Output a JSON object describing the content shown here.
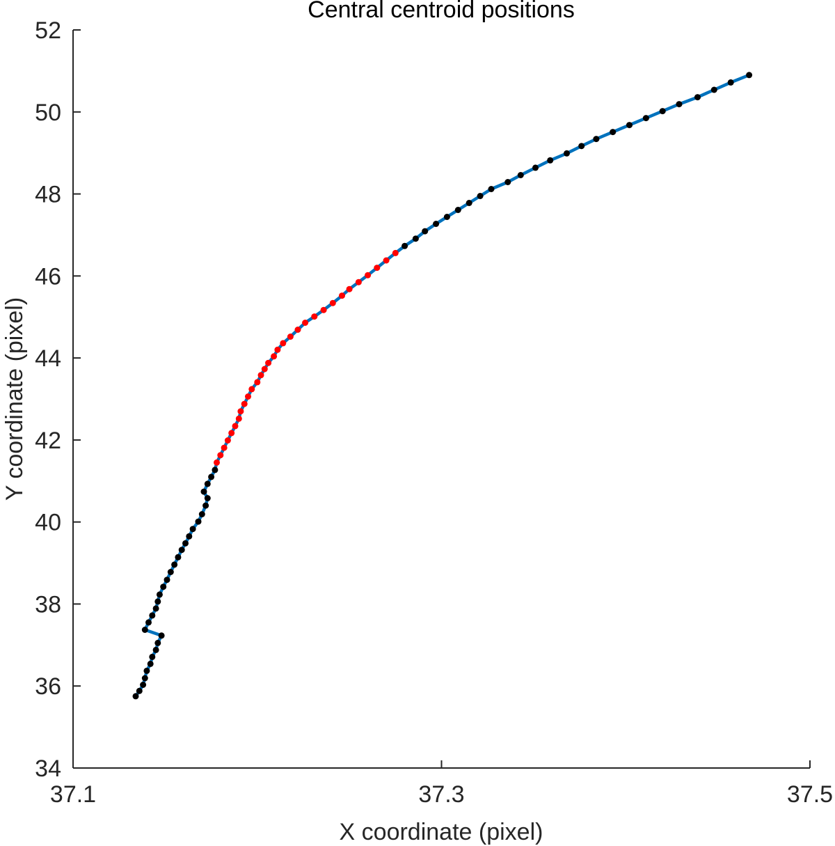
{
  "chart_data": {
    "type": "line",
    "title": "Central centroid positions",
    "xlabel": "X coordinate (pixel)",
    "ylabel": "Y coordinate (pixel)",
    "xlim": [
      37.1,
      37.5
    ],
    "ylim": [
      34,
      52
    ],
    "x_ticks": [
      37.1,
      37.3,
      37.5
    ],
    "x_tick_labels": [
      "37.1",
      "37.3",
      "37.5"
    ],
    "y_ticks": [
      34,
      36,
      38,
      40,
      42,
      44,
      46,
      48,
      50,
      52
    ],
    "y_tick_labels": [
      "34",
      "36",
      "38",
      "40",
      "42",
      "44",
      "46",
      "48",
      "50",
      "52"
    ],
    "grid": false,
    "legend": "none",
    "line_color": "#0072BD",
    "marker_colors": {
      "default": "#000000",
      "highlight": "#FF0000"
    },
    "series": [
      {
        "points": [
          {
            "x": 37.134,
            "y": 35.75,
            "highlight": false
          },
          {
            "x": 37.136,
            "y": 35.88,
            "highlight": false
          },
          {
            "x": 37.138,
            "y": 36.03,
            "highlight": false
          },
          {
            "x": 37.139,
            "y": 36.19,
            "highlight": false
          },
          {
            "x": 37.14,
            "y": 36.37,
            "highlight": false
          },
          {
            "x": 37.142,
            "y": 36.54,
            "highlight": false
          },
          {
            "x": 37.143,
            "y": 36.71,
            "highlight": false
          },
          {
            "x": 37.145,
            "y": 36.88,
            "highlight": false
          },
          {
            "x": 37.146,
            "y": 37.05,
            "highlight": false
          },
          {
            "x": 37.148,
            "y": 37.23,
            "highlight": false
          },
          {
            "x": 37.139,
            "y": 37.37,
            "highlight": false
          },
          {
            "x": 37.141,
            "y": 37.55,
            "highlight": false
          },
          {
            "x": 37.143,
            "y": 37.72,
            "highlight": false
          },
          {
            "x": 37.145,
            "y": 37.89,
            "highlight": false
          },
          {
            "x": 37.146,
            "y": 38.06,
            "highlight": false
          },
          {
            "x": 37.147,
            "y": 38.23,
            "highlight": false
          },
          {
            "x": 37.149,
            "y": 38.42,
            "highlight": false
          },
          {
            "x": 37.151,
            "y": 38.59,
            "highlight": false
          },
          {
            "x": 37.153,
            "y": 38.78,
            "highlight": false
          },
          {
            "x": 37.155,
            "y": 38.96,
            "highlight": false
          },
          {
            "x": 37.157,
            "y": 39.14,
            "highlight": false
          },
          {
            "x": 37.159,
            "y": 39.32,
            "highlight": false
          },
          {
            "x": 37.161,
            "y": 39.48,
            "highlight": false
          },
          {
            "x": 37.163,
            "y": 39.65,
            "highlight": false
          },
          {
            "x": 37.165,
            "y": 39.83,
            "highlight": false
          },
          {
            "x": 37.168,
            "y": 40.01,
            "highlight": false
          },
          {
            "x": 37.17,
            "y": 40.19,
            "highlight": false
          },
          {
            "x": 37.172,
            "y": 40.4,
            "highlight": false
          },
          {
            "x": 37.173,
            "y": 40.58,
            "highlight": false
          },
          {
            "x": 37.171,
            "y": 40.74,
            "highlight": false
          },
          {
            "x": 37.173,
            "y": 40.93,
            "highlight": false
          },
          {
            "x": 37.175,
            "y": 41.1,
            "highlight": false
          },
          {
            "x": 37.177,
            "y": 41.27,
            "highlight": false
          },
          {
            "x": 37.178,
            "y": 41.45,
            "highlight": true
          },
          {
            "x": 37.18,
            "y": 41.63,
            "highlight": true
          },
          {
            "x": 37.182,
            "y": 41.81,
            "highlight": true
          },
          {
            "x": 37.184,
            "y": 41.99,
            "highlight": true
          },
          {
            "x": 37.186,
            "y": 42.17,
            "highlight": true
          },
          {
            "x": 37.188,
            "y": 42.34,
            "highlight": true
          },
          {
            "x": 37.19,
            "y": 42.52,
            "highlight": true
          },
          {
            "x": 37.191,
            "y": 42.7,
            "highlight": true
          },
          {
            "x": 37.193,
            "y": 42.88,
            "highlight": true
          },
          {
            "x": 37.195,
            "y": 43.06,
            "highlight": true
          },
          {
            "x": 37.197,
            "y": 43.24,
            "highlight": true
          },
          {
            "x": 37.2,
            "y": 43.41,
            "highlight": true
          },
          {
            "x": 37.202,
            "y": 43.58,
            "highlight": true
          },
          {
            "x": 37.204,
            "y": 43.73,
            "highlight": true
          },
          {
            "x": 37.206,
            "y": 43.88,
            "highlight": true
          },
          {
            "x": 37.209,
            "y": 44.04,
            "highlight": true
          },
          {
            "x": 37.211,
            "y": 44.2,
            "highlight": true
          },
          {
            "x": 37.214,
            "y": 44.36,
            "highlight": true
          },
          {
            "x": 37.218,
            "y": 44.52,
            "highlight": true
          },
          {
            "x": 37.222,
            "y": 44.69,
            "highlight": true
          },
          {
            "x": 37.226,
            "y": 44.86,
            "highlight": true
          },
          {
            "x": 37.231,
            "y": 45.01,
            "highlight": true
          },
          {
            "x": 37.236,
            "y": 45.17,
            "highlight": true
          },
          {
            "x": 37.241,
            "y": 45.34,
            "highlight": true
          },
          {
            "x": 37.246,
            "y": 45.52,
            "highlight": true
          },
          {
            "x": 37.25,
            "y": 45.68,
            "highlight": true
          },
          {
            "x": 37.255,
            "y": 45.85,
            "highlight": true
          },
          {
            "x": 37.26,
            "y": 46.02,
            "highlight": true
          },
          {
            "x": 37.265,
            "y": 46.2,
            "highlight": true
          },
          {
            "x": 37.27,
            "y": 46.38,
            "highlight": true
          },
          {
            "x": 37.275,
            "y": 46.56,
            "highlight": true
          },
          {
            "x": 37.28,
            "y": 46.73,
            "highlight": false
          },
          {
            "x": 37.286,
            "y": 46.91,
            "highlight": false
          },
          {
            "x": 37.291,
            "y": 47.09,
            "highlight": false
          },
          {
            "x": 37.297,
            "y": 47.27,
            "highlight": false
          },
          {
            "x": 37.303,
            "y": 47.44,
            "highlight": false
          },
          {
            "x": 37.309,
            "y": 47.61,
            "highlight": false
          },
          {
            "x": 37.315,
            "y": 47.78,
            "highlight": false
          },
          {
            "x": 37.321,
            "y": 47.95,
            "highlight": false
          },
          {
            "x": 37.327,
            "y": 48.12,
            "highlight": false
          },
          {
            "x": 37.336,
            "y": 48.29,
            "highlight": false
          },
          {
            "x": 37.343,
            "y": 48.46,
            "highlight": false
          },
          {
            "x": 37.351,
            "y": 48.64,
            "highlight": false
          },
          {
            "x": 37.359,
            "y": 48.82,
            "highlight": false
          },
          {
            "x": 37.368,
            "y": 48.99,
            "highlight": false
          },
          {
            "x": 37.376,
            "y": 49.17,
            "highlight": false
          },
          {
            "x": 37.384,
            "y": 49.34,
            "highlight": false
          },
          {
            "x": 37.393,
            "y": 49.51,
            "highlight": false
          },
          {
            "x": 37.402,
            "y": 49.68,
            "highlight": false
          },
          {
            "x": 37.411,
            "y": 49.85,
            "highlight": false
          },
          {
            "x": 37.42,
            "y": 50.02,
            "highlight": false
          },
          {
            "x": 37.429,
            "y": 50.19,
            "highlight": false
          },
          {
            "x": 37.439,
            "y": 50.36,
            "highlight": false
          },
          {
            "x": 37.448,
            "y": 50.54,
            "highlight": false
          },
          {
            "x": 37.457,
            "y": 50.72,
            "highlight": false
          },
          {
            "x": 37.467,
            "y": 50.9,
            "highlight": false
          }
        ]
      }
    ]
  }
}
